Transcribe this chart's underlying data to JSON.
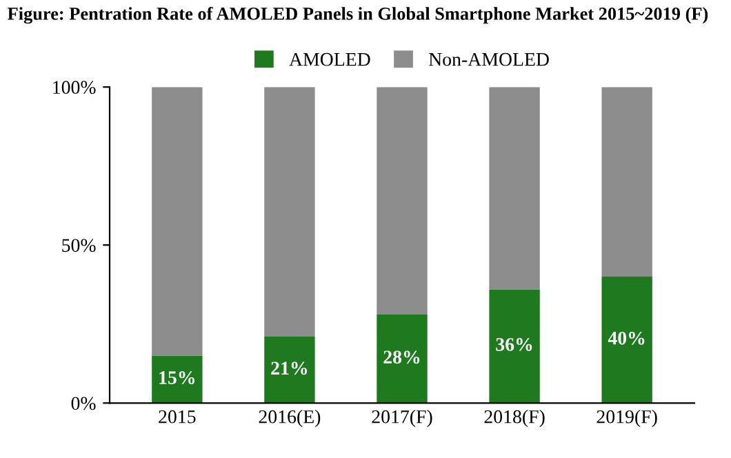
{
  "chart_data": {
    "type": "bar",
    "title": "Figure: Pentration Rate of AMOLED Panels in Global Smartphone Market 2015~2019 (F)",
    "categories": [
      "2015",
      "2016(E)",
      "2017(F)",
      "2018(F)",
      "2019(F)"
    ],
    "stacked": true,
    "series": [
      {
        "name": "AMOLED",
        "color": "#1f7a1f",
        "values": [
          15,
          21,
          28,
          36,
          40
        ],
        "value_labels": [
          "15%",
          "21%",
          "28%",
          "36%",
          "40%"
        ]
      },
      {
        "name": "Non-AMOLED",
        "color": "#8c8c8c",
        "values": [
          85,
          79,
          72,
          64,
          60
        ]
      }
    ],
    "ylim": [
      0,
      100
    ],
    "yticks": [
      {
        "value": 0,
        "label": "0%"
      },
      {
        "value": 50,
        "label": "50%"
      },
      {
        "value": 100,
        "label": "100%"
      }
    ],
    "legend": "top",
    "grid": false
  }
}
